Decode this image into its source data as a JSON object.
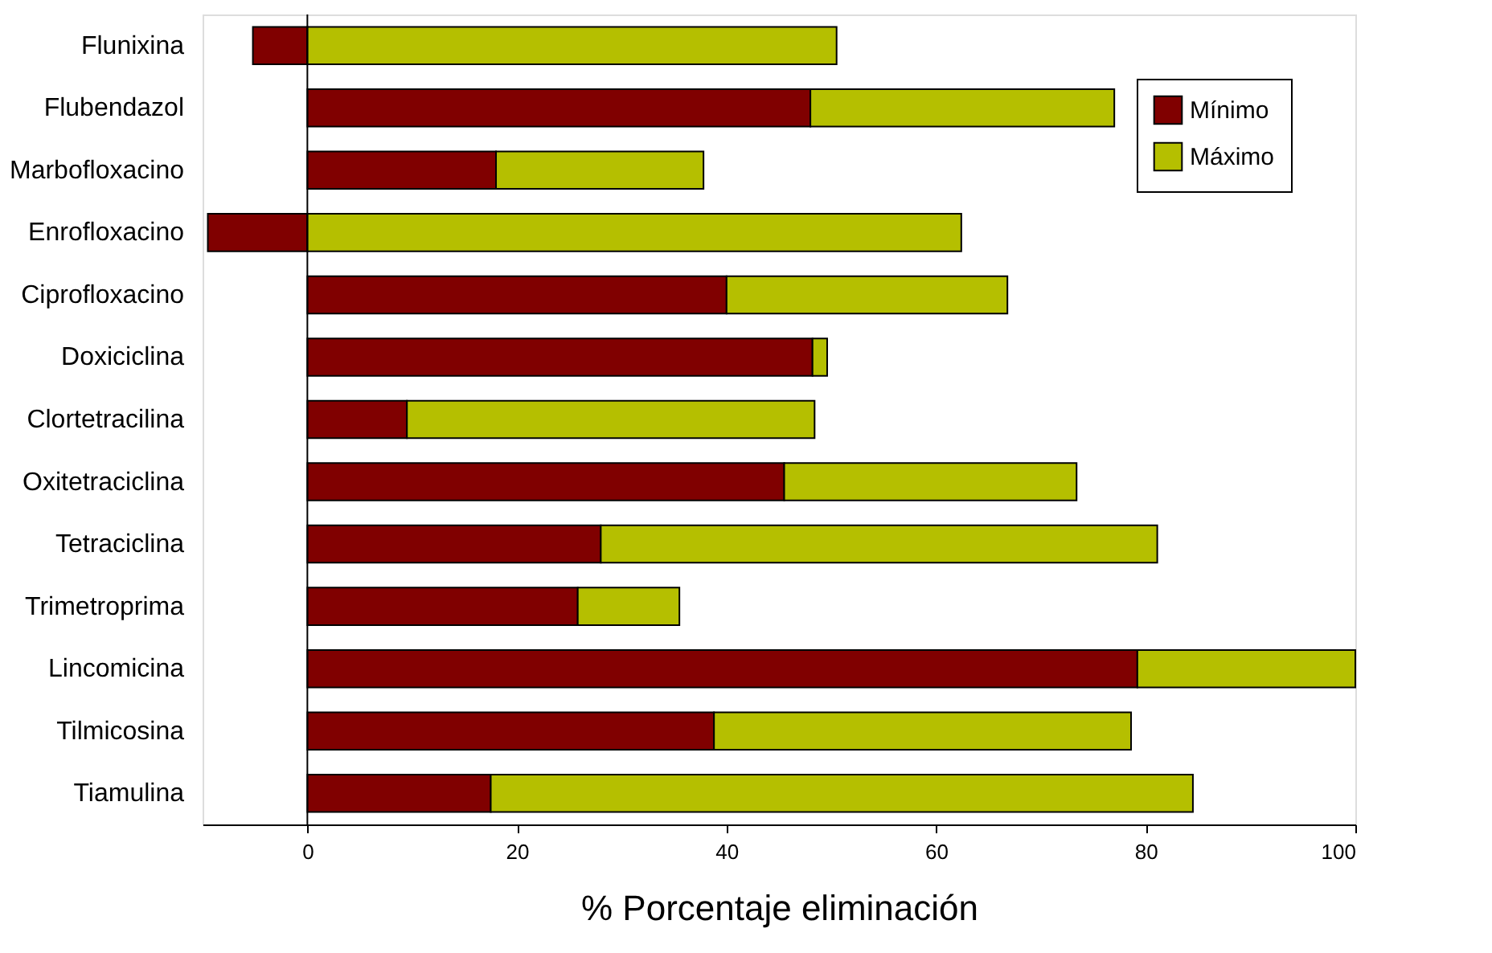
{
  "chart_data": {
    "type": "bar",
    "orientation": "horizontal",
    "stacked": true,
    "xlabel": "% Porcentaje eliminación",
    "categories": [
      "Flunixina",
      "Flubendazol",
      "Marbofloxacino",
      "Enrofloxacino",
      "Ciprofloxacino",
      "Doxiciclina",
      "Clortetracilina",
      "Oxitetraciclina",
      "Tetraciclina",
      "Trimetroprima",
      "Lincomicina",
      "Tilmicosina",
      "Tiamulina"
    ],
    "series": [
      {
        "name": "Mínimo",
        "color": "#800000",
        "values": [
          -5.2,
          48,
          18,
          -9.5,
          40,
          48.2,
          9.5,
          45.5,
          28,
          25.8,
          79.2,
          38.8,
          17.5
        ]
      },
      {
        "name": "Máximo",
        "color": "#b5bf00",
        "values": [
          50.5,
          29.0,
          19.8,
          62.4,
          26.8,
          1.4,
          38.9,
          27.9,
          53.1,
          9.7,
          20.8,
          39.8,
          67.0
        ]
      }
    ],
    "xlim": [
      -10,
      100
    ],
    "xticks": [
      0,
      20,
      40,
      60,
      80,
      100
    ],
    "ref_lines": [
      {
        "axis": "x",
        "value": 0
      }
    ],
    "grid": false,
    "legend": "top right"
  }
}
